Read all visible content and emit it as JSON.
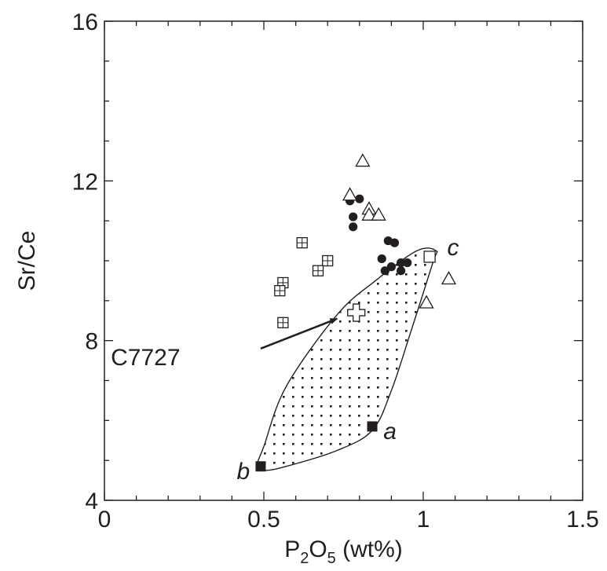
{
  "chart_data": {
    "type": "scatter",
    "xlabel": {
      "main": "P",
      "sub1": "2",
      "mid": "O",
      "sub2": "5",
      "tail": " (wt%)"
    },
    "ylabel": "Sr/Ce",
    "xlim": [
      0,
      1.5
    ],
    "ylim": [
      4,
      16
    ],
    "x_ticks": [
      {
        "value": 0,
        "label": "0"
      },
      {
        "value": 0.5,
        "label": "0.5"
      },
      {
        "value": 1,
        "label": "1"
      },
      {
        "value": 1.5,
        "label": "1.5"
      }
    ],
    "y_ticks": [
      {
        "value": 4,
        "label": "4"
      },
      {
        "value": 8,
        "label": "8"
      },
      {
        "value": 12,
        "label": "12"
      },
      {
        "value": 16,
        "label": "16"
      }
    ],
    "x_minor_step": 0.1,
    "y_minor_step": 1,
    "grid": false,
    "series": [
      {
        "marker": "filled-circle",
        "points": [
          [
            0.77,
            11.5
          ],
          [
            0.8,
            11.55
          ],
          [
            0.78,
            11.1
          ],
          [
            0.78,
            10.85
          ],
          [
            0.89,
            10.5
          ],
          [
            0.91,
            10.45
          ],
          [
            0.87,
            10.05
          ],
          [
            0.9,
            9.85
          ],
          [
            0.88,
            9.75
          ],
          [
            0.93,
            9.95
          ],
          [
            0.95,
            9.95
          ],
          [
            0.93,
            9.75
          ]
        ]
      },
      {
        "marker": "open-triangle",
        "points": [
          [
            0.81,
            12.5
          ],
          [
            0.77,
            11.65
          ],
          [
            0.83,
            11.3
          ],
          [
            0.83,
            11.15
          ],
          [
            0.86,
            11.15
          ],
          [
            1.08,
            9.55
          ],
          [
            1.01,
            8.95
          ]
        ]
      },
      {
        "marker": "crossed-square",
        "points": [
          [
            0.62,
            10.45
          ],
          [
            0.7,
            10.0
          ],
          [
            0.67,
            9.75
          ],
          [
            0.56,
            9.45
          ],
          [
            0.55,
            9.25
          ],
          [
            0.56,
            8.45
          ]
        ]
      },
      {
        "marker": "open-square",
        "points": [
          [
            1.02,
            10.1
          ]
        ]
      },
      {
        "marker": "open-cross",
        "points": [
          [
            0.79,
            8.7
          ]
        ]
      },
      {
        "marker": "filled-square",
        "points": [
          [
            0.84,
            5.85
          ],
          [
            0.49,
            4.85
          ]
        ]
      }
    ],
    "envelope": {
      "fill": "dotted",
      "outline": [
        [
          0.5,
          4.75
        ],
        [
          0.57,
          4.85
        ],
        [
          0.73,
          5.25
        ],
        [
          0.84,
          5.75
        ],
        [
          0.9,
          6.75
        ],
        [
          0.96,
          8.2
        ],
        [
          1.03,
          9.95
        ],
        [
          1.04,
          10.25
        ],
        [
          0.98,
          10.25
        ],
        [
          0.85,
          9.5
        ],
        [
          0.73,
          8.65
        ],
        [
          0.57,
          6.85
        ],
        [
          0.5,
          5.35
        ],
        [
          0.48,
          4.9
        ]
      ]
    },
    "annotations": [
      {
        "text": "C7727",
        "x": 0.02,
        "y": 7.6,
        "arrow_from": [
          0.49,
          7.8
        ],
        "arrow_to": [
          0.73,
          8.55
        ]
      },
      {
        "text": "a",
        "x": 0.875,
        "y": 5.75,
        "italic": true
      },
      {
        "text": "b",
        "x": 0.415,
        "y": 4.75,
        "italic": true
      },
      {
        "text": "c",
        "x": 1.075,
        "y": 10.35,
        "italic": true
      }
    ]
  }
}
